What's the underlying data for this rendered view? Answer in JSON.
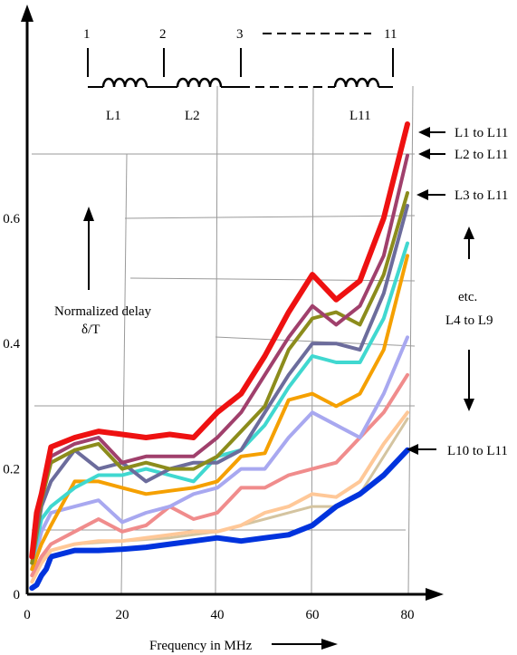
{
  "chart_data": {
    "type": "line",
    "xlabel": "Frequency in MHz",
    "ylabel_lines": [
      "Normalized delay",
      "δ/T"
    ],
    "xlim": [
      0,
      82
    ],
    "ylim": [
      0,
      0.75
    ],
    "x_ticks": [
      0,
      20,
      40,
      60,
      80
    ],
    "x_tick_labels": [
      "0",
      "20",
      "40",
      "60",
      "80"
    ],
    "y_ticks": [
      0,
      0.2,
      0.4,
      0.6
    ],
    "y_tick_labels": [
      "0",
      "0.2",
      "0.4",
      "0.6"
    ],
    "grid": true,
    "legend_labels": {
      "l1": "L1 to L11",
      "l2": "L2 to L11",
      "l3": "L3 to L11",
      "etc1": "etc.",
      "etc2": "L4 to L9",
      "l10": "L10 to L11"
    },
    "series": [
      {
        "color": "#d4c4a0",
        "width": 3,
        "x": [
          2,
          5,
          10,
          20,
          30,
          40,
          50,
          60,
          65,
          70,
          75,
          80
        ],
        "y": [
          0.05,
          0.07,
          0.08,
          0.085,
          0.09,
          0.1,
          0.12,
          0.14,
          0.14,
          0.16,
          0.22,
          0.28
        ]
      },
      {
        "color": "#0033dd",
        "width": 6,
        "x": [
          1,
          2,
          3,
          4,
          5,
          10,
          15,
          20,
          25,
          30,
          35,
          40,
          45,
          50,
          55,
          60,
          65,
          70,
          75,
          80
        ],
        "y": [
          0.01,
          0.015,
          0.03,
          0.04,
          0.06,
          0.07,
          0.07,
          0.072,
          0.075,
          0.08,
          0.085,
          0.09,
          0.085,
          0.09,
          0.095,
          0.11,
          0.14,
          0.16,
          0.19,
          0.23
        ]
      },
      {
        "color": "#ffc898",
        "width": 4,
        "x": [
          1,
          3,
          5,
          10,
          15,
          20,
          25,
          30,
          35,
          40,
          45,
          50,
          55,
          60,
          65,
          70,
          75,
          80
        ],
        "y": [
          0.02,
          0.05,
          0.07,
          0.08,
          0.085,
          0.085,
          0.09,
          0.095,
          0.1,
          0.1,
          0.11,
          0.13,
          0.14,
          0.16,
          0.155,
          0.18,
          0.24,
          0.29
        ]
      },
      {
        "color": "#f08c8c",
        "width": 4,
        "x": [
          1,
          3,
          5,
          10,
          15,
          20,
          25,
          30,
          35,
          40,
          45,
          50,
          55,
          60,
          65,
          70,
          75,
          80
        ],
        "y": [
          0.03,
          0.06,
          0.08,
          0.1,
          0.12,
          0.1,
          0.11,
          0.14,
          0.12,
          0.13,
          0.17,
          0.17,
          0.19,
          0.2,
          0.21,
          0.25,
          0.29,
          0.35
        ]
      },
      {
        "color": "#a8a8f0",
        "width": 4,
        "x": [
          1,
          3,
          5,
          10,
          15,
          20,
          25,
          30,
          35,
          40,
          45,
          50,
          55,
          60,
          65,
          70,
          75,
          80
        ],
        "y": [
          0.04,
          0.1,
          0.13,
          0.14,
          0.15,
          0.115,
          0.13,
          0.14,
          0.16,
          0.17,
          0.2,
          0.2,
          0.25,
          0.29,
          0.27,
          0.25,
          0.32,
          0.41
        ]
      },
      {
        "color": "#f5a000",
        "width": 4,
        "x": [
          1,
          3,
          5,
          10,
          15,
          20,
          25,
          30,
          35,
          40,
          45,
          50,
          55,
          60,
          65,
          70,
          75,
          80
        ],
        "y": [
          0.04,
          0.08,
          0.11,
          0.18,
          0.18,
          0.17,
          0.16,
          0.165,
          0.17,
          0.18,
          0.22,
          0.225,
          0.31,
          0.32,
          0.3,
          0.32,
          0.39,
          0.54
        ]
      },
      {
        "color": "#40d8d0",
        "width": 4,
        "x": [
          1,
          3,
          5,
          10,
          15,
          20,
          25,
          30,
          35,
          40,
          45,
          50,
          55,
          60,
          65,
          70,
          75,
          80
        ],
        "y": [
          0.05,
          0.12,
          0.14,
          0.17,
          0.19,
          0.19,
          0.2,
          0.19,
          0.18,
          0.22,
          0.23,
          0.27,
          0.33,
          0.38,
          0.37,
          0.37,
          0.44,
          0.56
        ]
      },
      {
        "color": "#6c6c9c",
        "width": 4,
        "x": [
          1,
          3,
          5,
          10,
          15,
          20,
          25,
          30,
          35,
          40,
          45,
          50,
          55,
          60,
          65,
          70,
          75,
          80
        ],
        "y": [
          0.05,
          0.14,
          0.18,
          0.23,
          0.2,
          0.21,
          0.18,
          0.2,
          0.21,
          0.21,
          0.23,
          0.29,
          0.35,
          0.4,
          0.4,
          0.39,
          0.48,
          0.62
        ]
      },
      {
        "color": "#8c8c1c",
        "width": 4,
        "x": [
          1,
          3,
          5,
          10,
          15,
          20,
          25,
          30,
          35,
          40,
          45,
          50,
          55,
          60,
          65,
          70,
          75,
          80
        ],
        "y": [
          0.05,
          0.15,
          0.21,
          0.23,
          0.24,
          0.2,
          0.21,
          0.2,
          0.2,
          0.22,
          0.26,
          0.3,
          0.39,
          0.44,
          0.45,
          0.43,
          0.51,
          0.64
        ]
      },
      {
        "color": "#a0406c",
        "width": 4,
        "x": [
          1,
          3,
          5,
          10,
          15,
          20,
          25,
          30,
          35,
          40,
          45,
          50,
          55,
          60,
          65,
          70,
          75,
          80
        ],
        "y": [
          0.06,
          0.16,
          0.22,
          0.24,
          0.25,
          0.21,
          0.22,
          0.22,
          0.22,
          0.25,
          0.29,
          0.35,
          0.41,
          0.46,
          0.43,
          0.46,
          0.54,
          0.7
        ]
      },
      {
        "color": "#ee1111",
        "width": 6,
        "x": [
          1,
          2,
          3,
          5,
          10,
          15,
          20,
          25,
          30,
          35,
          40,
          45,
          50,
          55,
          60,
          65,
          70,
          75,
          80
        ],
        "y": [
          0.06,
          0.13,
          0.16,
          0.235,
          0.25,
          0.26,
          0.255,
          0.25,
          0.255,
          0.25,
          0.29,
          0.32,
          0.38,
          0.45,
          0.51,
          0.47,
          0.5,
          0.6,
          0.75
        ]
      }
    ]
  },
  "circuit": {
    "nodes": [
      "1",
      "2",
      "3",
      "11"
    ],
    "inductors": [
      "L1",
      "L2",
      "L11"
    ]
  }
}
